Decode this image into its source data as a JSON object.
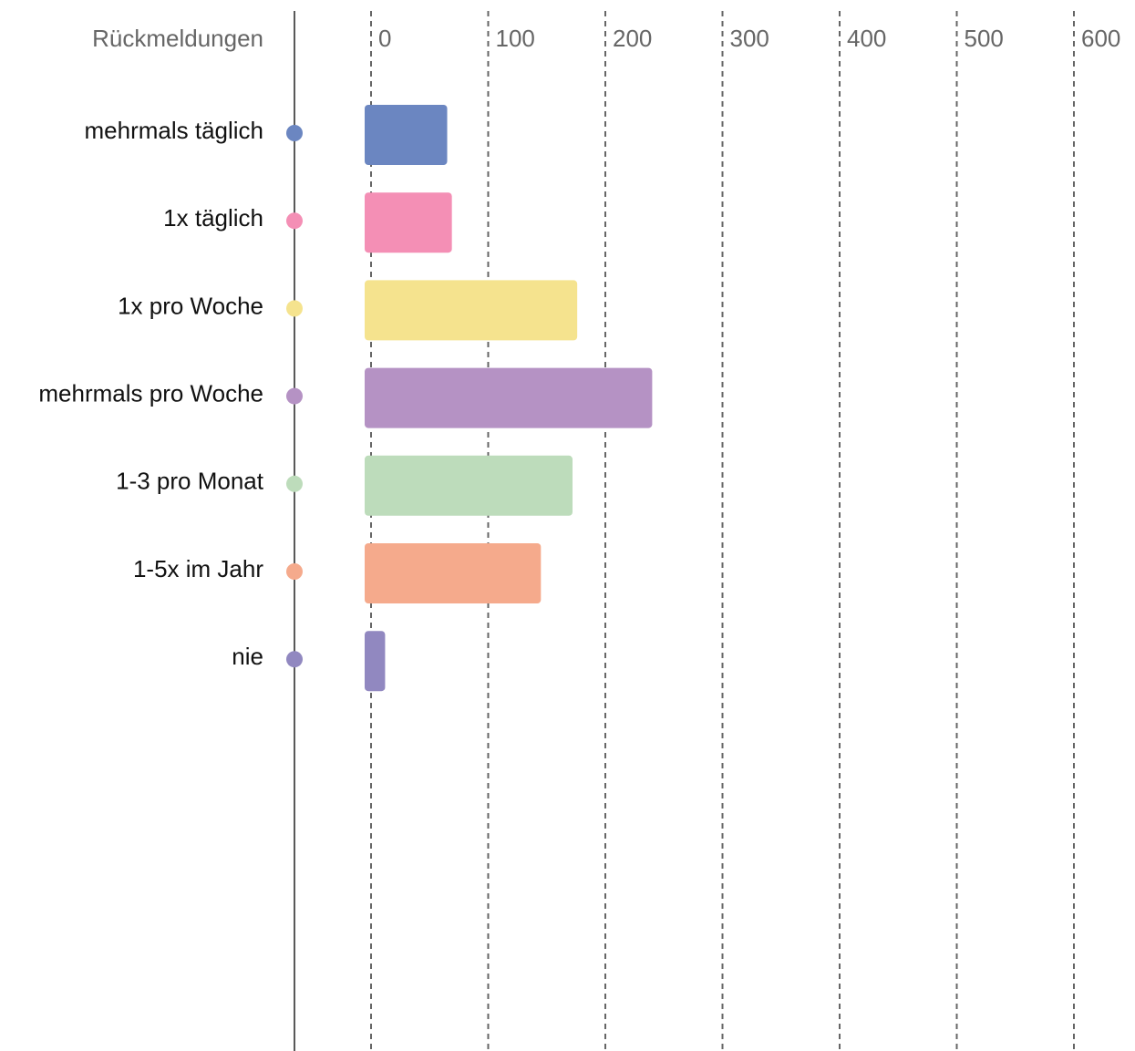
{
  "chart_data": {
    "type": "bar",
    "orientation": "horizontal",
    "category_label": "Rückmeldungen",
    "categories": [
      "mehrmals täglich",
      "1x täglich",
      "1x pro Woche",
      "mehrmals pro Woche",
      "1-3 pro Monat",
      "1-5x im Jahr",
      "nie"
    ],
    "values": [
      65,
      69,
      176,
      240,
      172,
      145,
      12
    ],
    "colors": [
      "#6b86c1",
      "#f48fb5",
      "#f5e38e",
      "#b592c4",
      "#bddcbb",
      "#f5aa8c",
      "#9188c0"
    ],
    "xlim": [
      0,
      600
    ],
    "xticks": [
      0,
      100,
      200,
      300,
      400,
      500,
      600
    ],
    "grid": true,
    "grid_style": "dashed"
  }
}
